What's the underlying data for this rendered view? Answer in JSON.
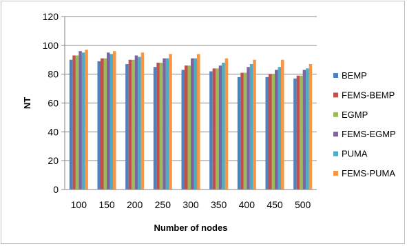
{
  "chart_data": {
    "type": "bar",
    "title": "",
    "xlabel": "Number of nodes",
    "ylabel": "NT",
    "ylim": [
      0,
      120
    ],
    "yticks": [
      0,
      20,
      40,
      60,
      80,
      100,
      120
    ],
    "grid": true,
    "legend_position": "right",
    "categories": [
      "100",
      "150",
      "200",
      "250",
      "300",
      "350",
      "400",
      "450",
      "500"
    ],
    "series": [
      {
        "name": "BEMP",
        "color": "#4F81BD",
        "values": [
          90,
          89,
          87,
          85,
          83,
          82,
          78,
          78,
          77
        ]
      },
      {
        "name": "FEMS-BEMP",
        "color": "#C0504D",
        "values": [
          93,
          91,
          90,
          88,
          86,
          84,
          81,
          80,
          79
        ]
      },
      {
        "name": "EGMP",
        "color": "#9BBB59",
        "values": [
          93,
          91,
          90,
          88,
          86,
          84,
          81,
          80,
          79
        ]
      },
      {
        "name": "FEMS-EGMP",
        "color": "#8064A2",
        "values": [
          96,
          95,
          93,
          91,
          91,
          86,
          85,
          83,
          83
        ]
      },
      {
        "name": "PUMA",
        "color": "#4BACC6",
        "values": [
          95,
          94,
          92,
          91,
          91,
          88,
          87,
          85,
          84
        ]
      },
      {
        "name": "FEMS-PUMA",
        "color": "#F79646",
        "values": [
          97,
          96,
          95,
          94,
          94,
          91,
          90,
          90,
          87
        ]
      }
    ]
  }
}
